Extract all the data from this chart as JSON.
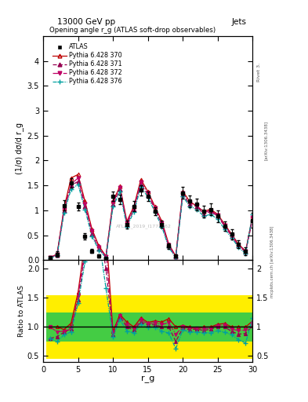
{
  "title_top": "13000 GeV pp",
  "title_right": "Jets",
  "plot_title": "Opening angle r_g (ATLAS soft-drop observables)",
  "ylabel_main": "(1/σ) dσ/d r_g",
  "ylabel_ratio": "Ratio to ATLAS",
  "xlabel": "r_g",
  "watermark": "ATLAS_2019_I1772062",
  "atlas_label": "ATLAS",
  "series_labels": [
    "ATLAS",
    "Pythia 6.428 370",
    "Pythia 6.428 371",
    "Pythia 6.428 372",
    "Pythia 6.428 376"
  ],
  "x": [
    1,
    2,
    3,
    4,
    5,
    6,
    7,
    8,
    9,
    10,
    11,
    12,
    13,
    14,
    15,
    16,
    17,
    18,
    19,
    20,
    21,
    22,
    23,
    24,
    25,
    26,
    27,
    28,
    29,
    30
  ],
  "atlas_y": [
    0.05,
    0.12,
    1.1,
    1.55,
    1.08,
    0.48,
    0.18,
    0.08,
    0.03,
    1.28,
    1.22,
    0.72,
    1.08,
    1.4,
    1.28,
    0.98,
    0.72,
    0.28,
    0.08,
    1.35,
    1.18,
    1.12,
    0.98,
    1.02,
    0.88,
    0.68,
    0.52,
    0.32,
    0.18,
    0.8
  ],
  "atlas_yerr": [
    0.02,
    0.05,
    0.1,
    0.1,
    0.08,
    0.06,
    0.04,
    0.03,
    0.02,
    0.1,
    0.1,
    0.08,
    0.1,
    0.1,
    0.1,
    0.08,
    0.07,
    0.05,
    0.03,
    0.12,
    0.12,
    0.12,
    0.12,
    0.12,
    0.12,
    0.1,
    0.1,
    0.08,
    0.08,
    0.15
  ],
  "p370_y": [
    0.05,
    0.12,
    1.05,
    1.65,
    1.72,
    1.18,
    0.62,
    0.28,
    0.08,
    1.18,
    1.48,
    0.78,
    1.08,
    1.62,
    1.38,
    1.08,
    0.78,
    0.32,
    0.08,
    1.38,
    1.18,
    1.08,
    0.98,
    1.02,
    0.92,
    0.72,
    0.52,
    0.32,
    0.18,
    0.88
  ],
  "p371_y": [
    0.04,
    0.1,
    1.0,
    1.5,
    1.58,
    1.08,
    0.52,
    0.22,
    0.06,
    1.12,
    1.42,
    0.72,
    1.02,
    1.52,
    1.32,
    1.02,
    0.72,
    0.28,
    0.06,
    1.32,
    1.12,
    1.08,
    0.92,
    0.98,
    0.88,
    0.68,
    0.48,
    0.28,
    0.16,
    0.82
  ],
  "p372_y": [
    0.05,
    0.11,
    1.02,
    1.52,
    1.65,
    1.12,
    0.58,
    0.25,
    0.07,
    1.15,
    1.45,
    0.75,
    1.05,
    1.57,
    1.35,
    1.05,
    0.75,
    0.3,
    0.07,
    1.35,
    1.15,
    1.1,
    0.95,
    1.0,
    0.9,
    0.7,
    0.5,
    0.3,
    0.17,
    0.85
  ],
  "p376_y": [
    0.04,
    0.09,
    0.95,
    1.42,
    1.52,
    1.02,
    0.47,
    0.2,
    0.05,
    1.07,
    1.37,
    0.67,
    0.97,
    1.47,
    1.27,
    0.97,
    0.67,
    0.25,
    0.05,
    1.28,
    1.08,
    1.02,
    0.88,
    0.92,
    0.82,
    0.62,
    0.45,
    0.25,
    0.13,
    0.92
  ],
  "color_370": "#be0000",
  "color_371": "#960050",
  "color_372": "#be0064",
  "color_376": "#00a0a0",
  "color_atlas": "#000000",
  "band_yellow": "#ffee00",
  "band_green": "#44cc44",
  "ylim_main": [
    0,
    4.5
  ],
  "ylim_ratio": [
    0.4,
    2.15
  ],
  "yticks_main": [
    0.0,
    0.5,
    1.0,
    1.5,
    2.0,
    2.5,
    3.0,
    3.5,
    4.0
  ],
  "yticks_ratio": [
    0.5,
    1.0,
    1.5,
    2.0
  ],
  "xticks": [
    0,
    5,
    10,
    15,
    20,
    25,
    30
  ],
  "xlim": [
    0,
    30
  ],
  "band_yellow_scale": 0.55,
  "band_green_scale": 0.25
}
